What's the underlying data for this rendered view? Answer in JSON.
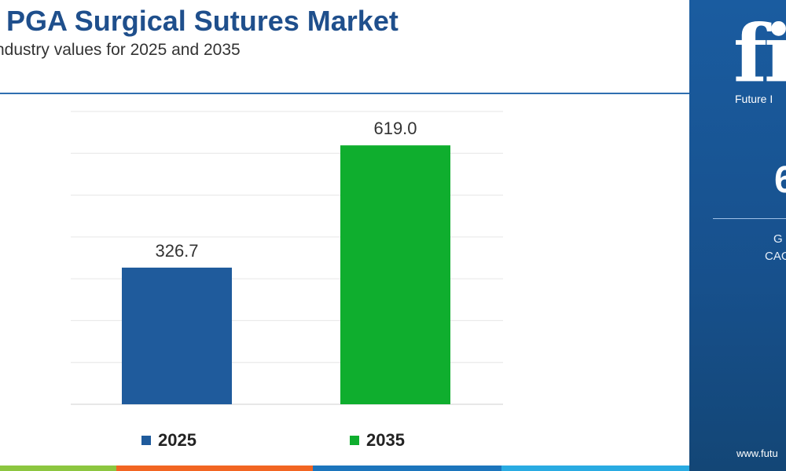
{
  "header": {
    "title": "e PGA Surgical Sutures Market",
    "subtitle": "ndustry values for 2025 and 2035"
  },
  "chart_data": {
    "type": "bar",
    "categories": [
      "2025",
      "2035"
    ],
    "values": [
      326.7,
      619.0
    ],
    "value_labels": [
      "326.7",
      "619.0"
    ],
    "colors": [
      "#1f5b9c",
      "#0fae2e"
    ],
    "ylim": [
      0,
      700
    ],
    "grid": true,
    "legend_position": "bottom"
  },
  "legend": [
    {
      "label": "2025",
      "color": "#1f5b9c"
    },
    {
      "label": "2035",
      "color": "#0fae2e"
    }
  ],
  "side_panel": {
    "logo": "fi",
    "brand": "Future I",
    "big_value": "6",
    "line1": "G",
    "line2": "CAG",
    "url": "www.futu"
  },
  "strip_colors": [
    "#8cc63f",
    "#f26522",
    "#1c75bc",
    "#29abe2"
  ]
}
